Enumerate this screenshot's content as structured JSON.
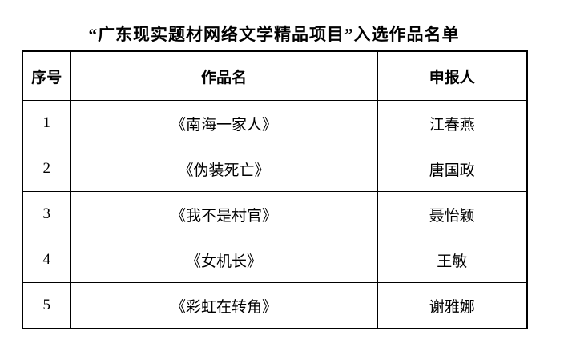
{
  "title": "“广东现实题材网络文学精品项目”入选作品名单",
  "table": {
    "headers": {
      "no": "序号",
      "work": "作品名",
      "applicant": "申报人"
    },
    "rows": [
      {
        "no": "1",
        "work": "《南海一家人》",
        "applicant": "江春燕"
      },
      {
        "no": "2",
        "work": "《伪装死亡》",
        "applicant": "唐国政"
      },
      {
        "no": "3",
        "work": "《我不是村官》",
        "applicant": "聂怡颖"
      },
      {
        "no": "4",
        "work": "《女机长》",
        "applicant": "王敏"
      },
      {
        "no": "5",
        "work": "《彩虹在转角》",
        "applicant": "谢雅娜"
      }
    ]
  },
  "colors": {
    "border": "#000000",
    "background": "#ffffff",
    "text": "#000000"
  }
}
